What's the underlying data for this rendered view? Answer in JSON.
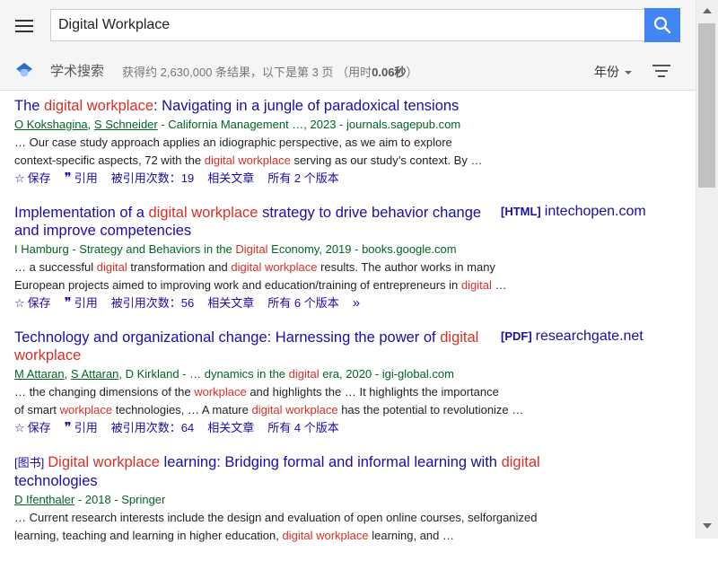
{
  "search": {
    "query": "Digital Workplace"
  },
  "header": {
    "scholar_label": "学术搜索",
    "stats_prefix": "获得约 2,630,000 条结果，以下是第 3 页 （用时",
    "stats_time": "0.06秒",
    "stats_suffix": "）",
    "year_label": "年份"
  },
  "actions": {
    "save": "保存",
    "cite": "引用",
    "related": "相关文章"
  },
  "results": [
    {
      "title_parts": [
        {
          "t": "The ",
          "hl": false
        },
        {
          "t": "digital workplace",
          "hl": true
        },
        {
          "t": ": Navigating in a jungle of paradoxical tensions",
          "hl": false
        }
      ],
      "authors": [
        "O Kokshagina",
        "S Schneider"
      ],
      "meta_parts": [
        {
          "t": " - California Management …, 2023 - journals.sagepub.com",
          "hl": false
        }
      ],
      "snippet_lines": [
        [
          {
            "t": "… Our case study approach applies an idiographic perspective, as we aim to explore",
            "hl": false
          }
        ],
        [
          {
            "t": "context-specific aspects, 72 with the ",
            "hl": false
          },
          {
            "t": "digital workplace",
            "hl": true
          },
          {
            "t": " serving as our study’s context. By …",
            "hl": false
          }
        ]
      ],
      "cited_by": "被引用次数：19",
      "versions": "所有 2 个版本",
      "more": false
    },
    {
      "title_parts": [
        {
          "t": "Implementation of a ",
          "hl": false
        },
        {
          "t": "digital workplace",
          "hl": true
        },
        {
          "t": " strategy to drive behavior change and improve competencies",
          "hl": false
        }
      ],
      "side_format": "[HTML]",
      "side_domain": "intechopen.com",
      "authors": [],
      "meta_parts": [
        {
          "t": "I Hamburg - Strategy and Behaviors in the ",
          "hl": false
        },
        {
          "t": "Digital",
          "hl": true
        },
        {
          "t": " Economy, 2019 - books.google.com",
          "hl": false
        }
      ],
      "snippet_lines": [
        [
          {
            "t": "… a successful ",
            "hl": false
          },
          {
            "t": "digital",
            "hl": true
          },
          {
            "t": " transformation and ",
            "hl": false
          },
          {
            "t": "digital workplace",
            "hl": true
          },
          {
            "t": " results. The author works in many",
            "hl": false
          }
        ],
        [
          {
            "t": "European projects aimed to improving work and education/training of entrepreneurs in ",
            "hl": false
          },
          {
            "t": "digital",
            "hl": true
          },
          {
            "t": " …",
            "hl": false
          }
        ]
      ],
      "cited_by": "被引用次数：56",
      "versions": "所有 6 个版本",
      "more": true
    },
    {
      "title_parts": [
        {
          "t": "Technology and organizational change: Harnessing the power of ",
          "hl": false
        },
        {
          "t": "digital workplace",
          "hl": true
        }
      ],
      "side_format": "[PDF]",
      "side_domain": "researchgate.net",
      "authors": [
        "M Attaran",
        "S Attaran"
      ],
      "meta_parts": [
        {
          "t": ", D Kirkland - … dynamics in the ",
          "hl": false
        },
        {
          "t": "digital",
          "hl": true
        },
        {
          "t": " era, 2020 - igi-global.com",
          "hl": false
        }
      ],
      "snippet_lines": [
        [
          {
            "t": "… the changing dimensions of the ",
            "hl": false
          },
          {
            "t": "workplace",
            "hl": true
          },
          {
            "t": " and highlights the … It highlights the importance",
            "hl": false
          }
        ],
        [
          {
            "t": "of smart ",
            "hl": false
          },
          {
            "t": "workplace",
            "hl": true
          },
          {
            "t": " technologies, … A mature ",
            "hl": false
          },
          {
            "t": "digital workplace",
            "hl": true
          },
          {
            "t": " has the potential to revolutionize …",
            "hl": false
          }
        ]
      ],
      "cited_by": "被引用次数：64",
      "versions": "所有 4 个版本",
      "more": false
    },
    {
      "book_tag": "[图书]",
      "title_parts": [
        {
          "t": "Digital workplace",
          "hl": true
        },
        {
          "t": " learning: Bridging formal and informal learning with ",
          "hl": false
        },
        {
          "t": "digital",
          "hl": true
        },
        {
          "t": " technologies",
          "hl": false
        }
      ],
      "authors": [
        "D Ifenthaler"
      ],
      "meta_parts": [
        {
          "t": " - 2018 - Springer",
          "hl": false
        }
      ],
      "snippet_lines": [
        [
          {
            "t": "… Current research interests include the design and evaluation of open online courses, selforganized",
            "hl": false
          }
        ],
        [
          {
            "t": "learning, teaching and learning in higher education, ",
            "hl": false
          },
          {
            "t": "digital workplace",
            "hl": true
          },
          {
            "t": " learning, and …",
            "hl": false
          }
        ]
      ],
      "cited_by": "",
      "versions": "",
      "more": false,
      "no_actions": true
    }
  ]
}
